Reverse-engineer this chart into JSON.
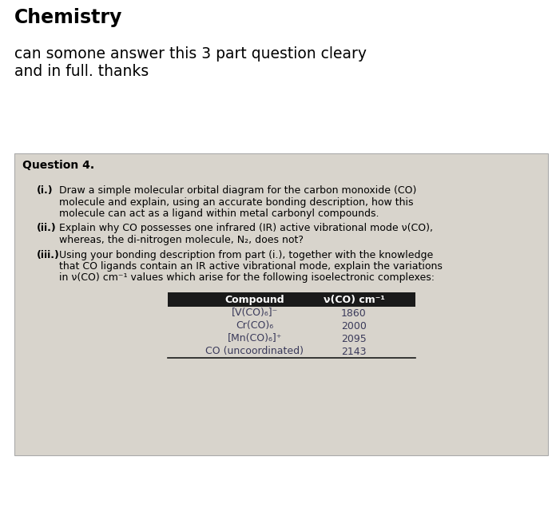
{
  "title": "Chemistry",
  "subtitle_line1": "can somone answer this 3 part question cleary",
  "subtitle_line2": "and in full. thanks",
  "bg_color": "#ffffff",
  "box_bg": "#d8d4cc",
  "box_edge": "#aaaaaa",
  "question_label": "Question 4.",
  "part_i_label": "(i.)",
  "part_i_text_line1": "Draw a simple molecular orbital diagram for the carbon monoxide (CO)",
  "part_i_text_line2": "molecule and explain, using an accurate bonding description, how this",
  "part_i_text_line3": "molecule can act as a ligand within metal carbonyl compounds.",
  "part_ii_label": "(ii.)",
  "part_ii_text_line1": "Explain why CO possesses one infrared (IR) active vibrational mode ν(CO),",
  "part_ii_text_line2": "whereas, the di-nitrogen molecule, N₂, does not?",
  "part_iii_label": "(iii.)",
  "part_iii_text_line1": "Using your bonding description from part (i.), together with the knowledge",
  "part_iii_text_line2": "that CO ligands contain an IR active vibrational mode, explain the variations",
  "part_iii_text_line3": "in ν(CO) cm⁻¹ values which arise for the following isoelectronic complexes:",
  "table_header_compound": "Compound",
  "table_header_nu": "ν(CO) cm⁻¹",
  "table_rows": [
    {
      "compound": "[V(CO)₆]⁻",
      "nu": "1860"
    },
    {
      "compound": "Cr(CO)₆",
      "nu": "2000"
    },
    {
      "compound": "[Mn(CO)₆]⁺",
      "nu": "2095"
    },
    {
      "compound": "CO (uncoordinated)",
      "nu": "2143"
    }
  ],
  "table_header_bg": "#1a1a1a",
  "table_header_color": "#ffffff",
  "table_text_color": "#3a3a5a",
  "table_line_color": "#1a1a1a",
  "title_fontsize": 17,
  "subtitle_fontsize": 13.5,
  "question_fontsize": 10,
  "body_fontsize": 9,
  "table_fontsize": 9
}
